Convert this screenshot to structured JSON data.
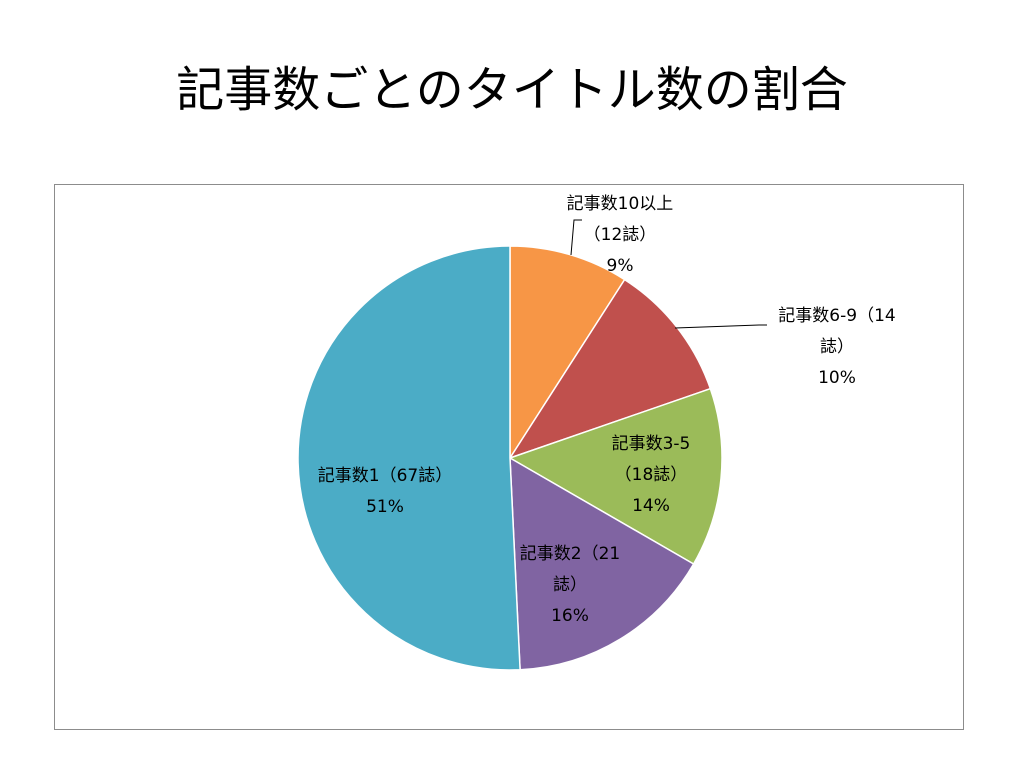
{
  "slide": {
    "title": "記事数ごとのタイトル数の割合"
  },
  "chart_data": {
    "type": "pie",
    "start_angle": "12 o'clock",
    "direction": "clockwise",
    "slices": [
      {
        "label_lines": [
          "記事数10以上",
          "（12誌）",
          "9%"
        ],
        "category": "記事数10以上",
        "count": 12,
        "percent": 9,
        "color": "#F79646"
      },
      {
        "label_lines": [
          "記事数6-9（14",
          "誌）",
          "10%"
        ],
        "category": "記事数6-9",
        "count": 14,
        "percent": 10,
        "color": "#C0504D"
      },
      {
        "label_lines": [
          "記事数3-5",
          "（18誌）",
          "14%"
        ],
        "category": "記事数3-5",
        "count": 18,
        "percent": 14,
        "color": "#9BBB59"
      },
      {
        "label_lines": [
          "記事数2（21",
          "誌）",
          "16%"
        ],
        "category": "記事数2",
        "count": 21,
        "percent": 16,
        "color": "#8064A2"
      },
      {
        "label_lines": [
          "記事数1（67誌）",
          "51%"
        ],
        "category": "記事数1",
        "count": 67,
        "percent": 51,
        "color": "#4BACC6"
      }
    ]
  }
}
